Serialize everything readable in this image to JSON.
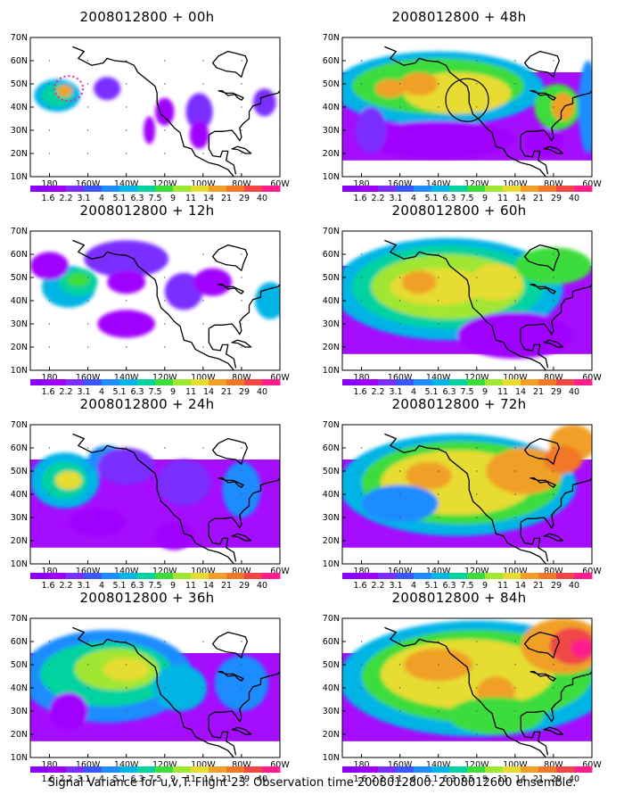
{
  "panels": [
    {
      "title": "2008012800 + 00h",
      "id": "00h"
    },
    {
      "title": "2008012800 + 48h",
      "id": "48h"
    },
    {
      "title": "2008012800 + 12h",
      "id": "12h"
    },
    {
      "title": "2008012800 + 60h",
      "id": "60h"
    },
    {
      "title": "2008012800 + 24h",
      "id": "24h"
    },
    {
      "title": "2008012800 + 72h",
      "id": "72h"
    },
    {
      "title": "2008012800 + 36h",
      "id": "36h"
    },
    {
      "title": "2008012800 + 84h",
      "id": "84h"
    }
  ],
  "lat_labels": [
    "70N",
    "60N",
    "50N",
    "40N",
    "30N",
    "20N",
    "10N"
  ],
  "lon_labels": [
    "180",
    "160W",
    "140W",
    "120W",
    "100W",
    "80W",
    "60W"
  ],
  "colorbar": {
    "labels": [
      "1.6",
      "2.2",
      "3.1",
      "4",
      "5.1",
      "6.3",
      "7.5",
      "9",
      "11",
      "14",
      "21",
      "29",
      "40"
    ],
    "colors": [
      "#a000ff",
      "#7a2eff",
      "#3a56ff",
      "#1e8cff",
      "#00b4e6",
      "#00d2a0",
      "#3cdc3c",
      "#a0e632",
      "#e6dc32",
      "#f0a028",
      "#f07828",
      "#f04646",
      "#ff1e8c"
    ]
  },
  "caption": "Signal Variance for u,v,T. Flight 23. Observation time 2008012800. 2008012600 ensemble."
}
